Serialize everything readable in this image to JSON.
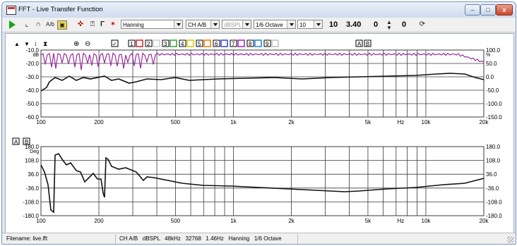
{
  "window": {
    "title": "FFT - Live Transfer Function"
  },
  "toolbar": {
    "window_select": "Hanning",
    "channel_select": "CH A/B",
    "unit_select": "dBSPL",
    "smoothing_select": "1/6 Octave",
    "avg_select": "10",
    "value1": "10",
    "value2": "3.40",
    "value3": "0",
    "value4": "0"
  },
  "legend": {
    "buttons": [
      "1",
      "2",
      "3",
      "4",
      "5",
      "6",
      "7",
      "8",
      "9"
    ],
    "colors": [
      "#e02020",
      "#d0d0d0",
      "#30a030",
      "#d8c800",
      "#f07800",
      "#3040e0",
      "#a020c0",
      "#2080e0",
      "#c0c0c0"
    ],
    "ab": [
      "A",
      "B"
    ]
  },
  "mag_plot": {
    "y_left_ticks": [
      "-10.0",
      "-20.0",
      "-30.0",
      "-40.0",
      "-50.0",
      "-60.0"
    ],
    "y_left_unit": "dB",
    "y_right_ticks": [
      "100.0",
      "50.0",
      "0.0",
      "-50.0",
      "-100.0",
      "-150.0"
    ],
    "y_right_unit": "%",
    "x_ticks": [
      "100",
      "200",
      "500",
      "1k",
      "2k",
      "5k",
      "10k",
      "20k"
    ],
    "x_unit": "Hz"
  },
  "phase_plot": {
    "y_left_ticks": [
      "180.0",
      "108.0",
      "36.0",
      "-36.0",
      "-108.0",
      "-180.0"
    ],
    "y_left_unit": "Deg",
    "y_right_ticks": [
      "180.0",
      "108.0",
      "36.0",
      "-36.0",
      "-108.0",
      "-180.0"
    ],
    "x_ticks": [
      "100",
      "200",
      "500",
      "1k",
      "2k",
      "5k",
      "10k",
      "20k"
    ],
    "x_unit": "Hz",
    "ab": [
      "A",
      "B"
    ]
  },
  "status": {
    "filename": "Filename: live.fft",
    "info": "CH A/B   dBSPL   48kHz   32768   1.46Hz   Hanning   1/6 Octave"
  },
  "colors": {
    "magnitude": "#111111",
    "coherence": "#9a2aa0",
    "grid": "#3a3a3a"
  }
}
